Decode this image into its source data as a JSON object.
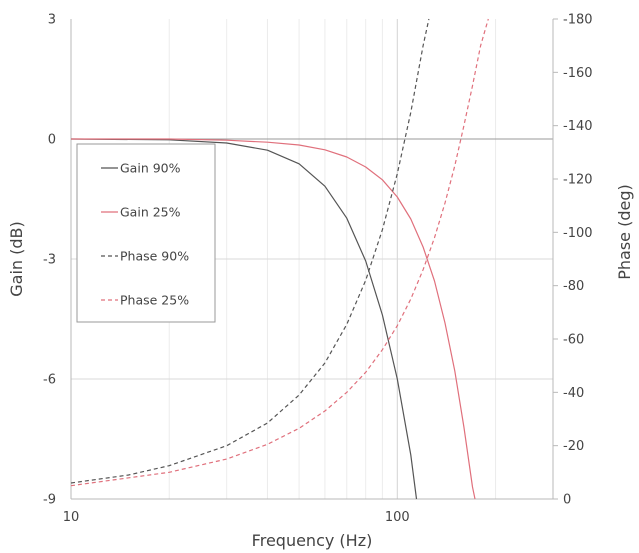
{
  "chart_data": {
    "type": "line",
    "title": "",
    "xlabel": "Frequency (Hz)",
    "ylabel": "Gain (dB)",
    "y2label": "Phase (deg)",
    "x_scale": "log",
    "xlim": [
      10,
      300
    ],
    "ylim": [
      -9,
      3
    ],
    "y2lim": [
      0,
      -180
    ],
    "grid": true,
    "legend_position": "left",
    "x_ticks": [
      "10",
      "100"
    ],
    "y_ticks": [
      "3",
      "0",
      "-3",
      "-6",
      "-9"
    ],
    "y2_ticks": [
      "-180",
      "-160",
      "-140",
      "-120",
      "-100",
      "-80",
      "-60",
      "-40",
      "-20",
      "0"
    ],
    "series": [
      {
        "name": "Gain 90%",
        "axis": "left",
        "style": "solid",
        "color": "#555555",
        "x": [
          10,
          20,
          30,
          40,
          50,
          60,
          70,
          80,
          90,
          100,
          110,
          114.5
        ],
        "y": [
          0,
          -0.02,
          -0.1,
          -0.28,
          -0.62,
          -1.18,
          -1.98,
          -3.05,
          -4.4,
          -6.0,
          -7.9,
          -9.0
        ]
      },
      {
        "name": "Gain 25%",
        "axis": "left",
        "style": "solid",
        "color": "#e0707c",
        "x": [
          10,
          20,
          30,
          40,
          50,
          60,
          70,
          80,
          90,
          100,
          110,
          120,
          130,
          140,
          150,
          160,
          170,
          173
        ],
        "y": [
          0,
          0,
          -0.03,
          -0.08,
          -0.15,
          -0.27,
          -0.45,
          -0.7,
          -1.02,
          -1.45,
          -2.0,
          -2.7,
          -3.55,
          -4.6,
          -5.8,
          -7.2,
          -8.7,
          -9.0
        ]
      },
      {
        "name": "Phase 90%",
        "axis": "right",
        "style": "dashed",
        "color": "#555555",
        "x": [
          10,
          15,
          20,
          30,
          40,
          50,
          60,
          70,
          80,
          90,
          100,
          110,
          120,
          125
        ],
        "y": [
          -6,
          -9,
          -12.5,
          -20,
          -28.5,
          -39,
          -51,
          -65.5,
          -82,
          -101,
          -122,
          -145,
          -170,
          -180
        ]
      },
      {
        "name": "Phase 25%",
        "axis": "right",
        "style": "dashed",
        "color": "#e0707c",
        "x": [
          10,
          20,
          30,
          40,
          50,
          60,
          70,
          80,
          90,
          100,
          110,
          120,
          130,
          140,
          150,
          160,
          170,
          180,
          190
        ],
        "y": [
          -5,
          -10,
          -15,
          -20.5,
          -26.5,
          -33,
          -40,
          -47.5,
          -56,
          -65,
          -75,
          -86,
          -98,
          -111,
          -125,
          -140,
          -155,
          -170,
          -180
        ]
      }
    ]
  }
}
